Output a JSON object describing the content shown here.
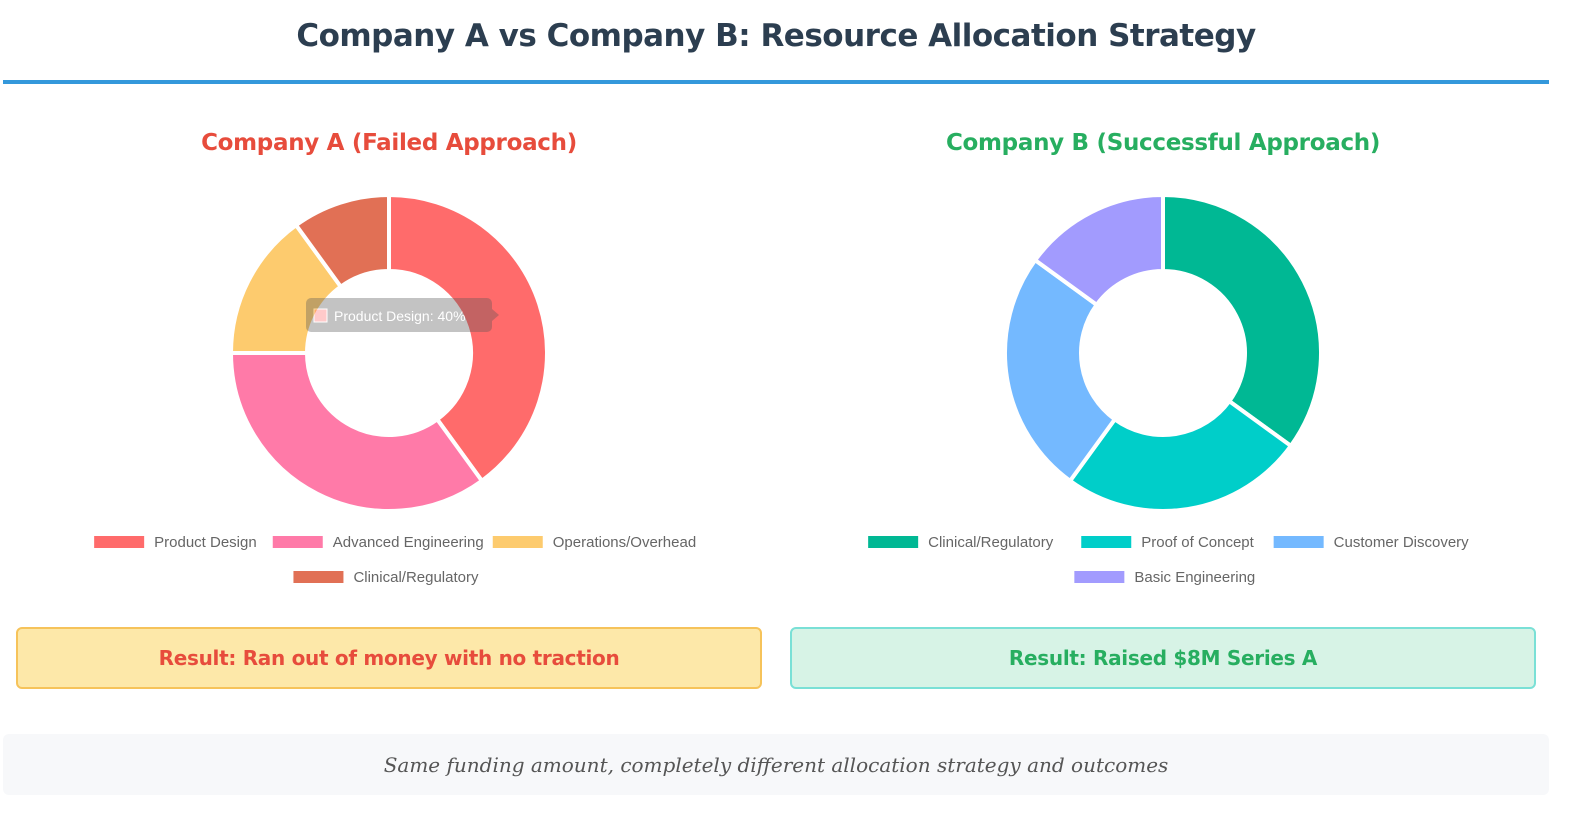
{
  "page": {
    "title": "Company A vs Company B: Resource Allocation Strategy",
    "footer_note": "Same funding amount, completely different allocation strategy and outcomes"
  },
  "colors": {
    "title_rule": "#3498db",
    "company_a_accent": "#e74c3c",
    "company_b_accent": "#27ae60"
  },
  "chart_data": [
    {
      "type": "pie",
      "variant": "doughnut",
      "title": "Company A (Failed Approach)",
      "categories": [
        "Product Design",
        "Advanced Engineering",
        "Operations/Overhead",
        "Clinical/Regulatory"
      ],
      "values": [
        40,
        35,
        15,
        10
      ],
      "colors": [
        "#ff6b6b",
        "#ff7aa8",
        "#fdcb6e",
        "#e17055"
      ],
      "legend_position": "bottom",
      "tooltip": {
        "label": "Product Design: 40%",
        "color": "#ff6b6b",
        "visible": true
      },
      "result": "Result: Ran out of money with no traction"
    },
    {
      "type": "pie",
      "variant": "doughnut",
      "title": "Company B (Successful Approach)",
      "categories": [
        "Clinical/Regulatory",
        "Proof of Concept",
        "Customer Discovery",
        "Basic Engineering"
      ],
      "values": [
        35,
        25,
        25,
        15
      ],
      "colors": [
        "#00b894",
        "#00cec9",
        "#74b9ff",
        "#a29bfe"
      ],
      "legend_position": "bottom",
      "result": "Result: Raised $8M Series A"
    }
  ]
}
